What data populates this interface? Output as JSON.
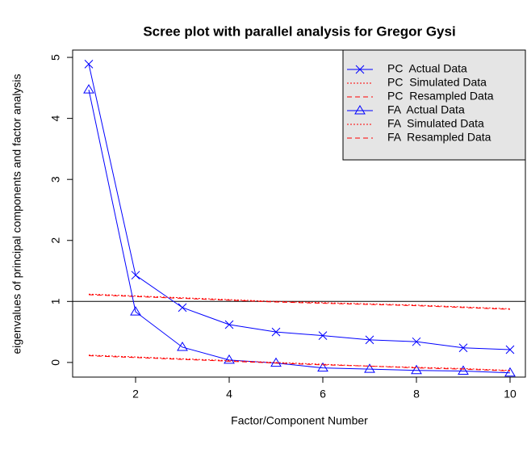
{
  "chart_data": {
    "type": "line",
    "title": "Scree plot with parallel analysis for Gregor Gysi",
    "x_label": "Factor/Component Number",
    "y_label": "eigenvalues of principal components and factor analysis",
    "x": [
      1,
      2,
      3,
      4,
      5,
      6,
      7,
      8,
      9,
      10
    ],
    "series": [
      {
        "name": "PC  Actual Data",
        "color": "#0000ff",
        "marker": "x",
        "dash": "solid",
        "values": [
          4.89,
          1.43,
          0.9,
          0.62,
          0.5,
          0.44,
          0.37,
          0.34,
          0.24,
          0.21
        ]
      },
      {
        "name": "PC  Simulated Data",
        "color": "#ff0000",
        "marker": "none",
        "dash": "dotted",
        "values": [
          1.12,
          1.09,
          1.06,
          1.03,
          1.0,
          0.98,
          0.96,
          0.94,
          0.91,
          0.88
        ]
      },
      {
        "name": "PC  Resampled Data",
        "color": "#ff0000",
        "marker": "none",
        "dash": "dashed",
        "values": [
          1.11,
          1.08,
          1.05,
          1.02,
          0.99,
          0.97,
          0.95,
          0.93,
          0.9,
          0.87
        ]
      },
      {
        "name": "FA  Actual Data",
        "color": "#0000ff",
        "marker": "triangle",
        "dash": "solid",
        "values": [
          4.47,
          0.83,
          0.25,
          0.04,
          -0.01,
          -0.09,
          -0.11,
          -0.13,
          -0.14,
          -0.17
        ]
      },
      {
        "name": "FA  Simulated Data",
        "color": "#ff0000",
        "marker": "none",
        "dash": "dotted",
        "values": [
          0.12,
          0.09,
          0.06,
          0.03,
          0.0,
          -0.03,
          -0.06,
          -0.08,
          -0.1,
          -0.13
        ]
      },
      {
        "name": "FA  Resampled Data",
        "color": "#ff0000",
        "marker": "none",
        "dash": "dashed",
        "values": [
          0.11,
          0.08,
          0.05,
          0.02,
          -0.01,
          -0.04,
          -0.06,
          -0.09,
          -0.11,
          -0.14
        ]
      }
    ],
    "hline": 1,
    "xlim": [
      0.655,
      10.345
    ],
    "ylim": [
      -0.24,
      5.12
    ],
    "xticks": [
      2,
      4,
      6,
      8,
      10
    ],
    "yticks": [
      0,
      1,
      2,
      3,
      4,
      5
    ],
    "legend_position": "top-right",
    "legend_text_color": "#00a000",
    "legend_fill": "#e5e5e5"
  }
}
